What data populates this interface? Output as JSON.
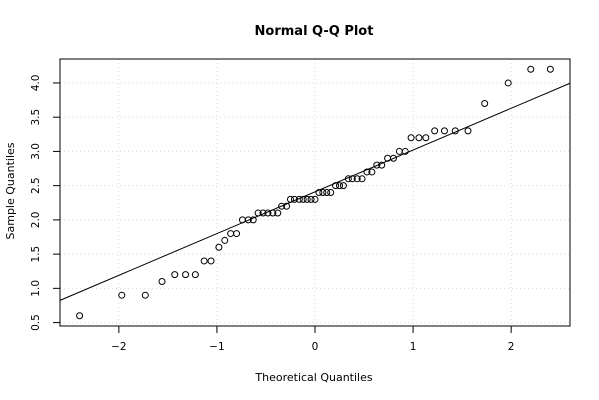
{
  "chart_data": {
    "type": "scatter",
    "title": "Normal Q-Q Plot",
    "xlabel": "Theoretical Quantiles",
    "ylabel": "Sample Quantiles",
    "xlim": [
      -2.6,
      2.6
    ],
    "ylim": [
      0.45,
      4.35
    ],
    "x_ticks": [
      -2,
      -1,
      0,
      1,
      2
    ],
    "x_tick_labels": [
      "−2",
      "−1",
      "0",
      "1",
      "2"
    ],
    "y_ticks": [
      0.5,
      1.0,
      1.5,
      2.0,
      2.5,
      3.0,
      3.5,
      4.0
    ],
    "y_tick_labels": [
      "0.5",
      "1.0",
      "1.5",
      "2.0",
      "2.5",
      "3.0",
      "3.5",
      "4.0"
    ],
    "grid": "dotted",
    "points": [
      {
        "x": -2.4,
        "y": 0.6
      },
      {
        "x": -1.97,
        "y": 0.9
      },
      {
        "x": -1.73,
        "y": 0.9
      },
      {
        "x": -1.56,
        "y": 1.1
      },
      {
        "x": -1.43,
        "y": 1.2
      },
      {
        "x": -1.32,
        "y": 1.2
      },
      {
        "x": -1.22,
        "y": 1.2
      },
      {
        "x": -1.13,
        "y": 1.4
      },
      {
        "x": -1.06,
        "y": 1.4
      },
      {
        "x": -0.98,
        "y": 1.6
      },
      {
        "x": -0.92,
        "y": 1.7
      },
      {
        "x": -0.86,
        "y": 1.8
      },
      {
        "x": -0.8,
        "y": 1.8
      },
      {
        "x": -0.74,
        "y": 2.0
      },
      {
        "x": -0.68,
        "y": 2.0
      },
      {
        "x": -0.63,
        "y": 2.0
      },
      {
        "x": -0.58,
        "y": 2.1
      },
      {
        "x": -0.53,
        "y": 2.1
      },
      {
        "x": -0.48,
        "y": 2.1
      },
      {
        "x": -0.43,
        "y": 2.1
      },
      {
        "x": -0.38,
        "y": 2.1
      },
      {
        "x": -0.34,
        "y": 2.2
      },
      {
        "x": -0.29,
        "y": 2.2
      },
      {
        "x": -0.25,
        "y": 2.3
      },
      {
        "x": -0.21,
        "y": 2.3
      },
      {
        "x": -0.16,
        "y": 2.3
      },
      {
        "x": -0.12,
        "y": 2.3
      },
      {
        "x": -0.08,
        "y": 2.3
      },
      {
        "x": -0.04,
        "y": 2.3
      },
      {
        "x": 0.0,
        "y": 2.3
      },
      {
        "x": 0.04,
        "y": 2.4
      },
      {
        "x": 0.08,
        "y": 2.4
      },
      {
        "x": 0.12,
        "y": 2.4
      },
      {
        "x": 0.16,
        "y": 2.4
      },
      {
        "x": 0.21,
        "y": 2.5
      },
      {
        "x": 0.25,
        "y": 2.5
      },
      {
        "x": 0.29,
        "y": 2.5
      },
      {
        "x": 0.34,
        "y": 2.6
      },
      {
        "x": 0.38,
        "y": 2.6
      },
      {
        "x": 0.43,
        "y": 2.6
      },
      {
        "x": 0.48,
        "y": 2.6
      },
      {
        "x": 0.53,
        "y": 2.7
      },
      {
        "x": 0.58,
        "y": 2.7
      },
      {
        "x": 0.63,
        "y": 2.8
      },
      {
        "x": 0.68,
        "y": 2.8
      },
      {
        "x": 0.74,
        "y": 2.9
      },
      {
        "x": 0.8,
        "y": 2.9
      },
      {
        "x": 0.86,
        "y": 3.0
      },
      {
        "x": 0.92,
        "y": 3.0
      },
      {
        "x": 0.98,
        "y": 3.2
      },
      {
        "x": 1.06,
        "y": 3.2
      },
      {
        "x": 1.13,
        "y": 3.2
      },
      {
        "x": 1.22,
        "y": 3.3
      },
      {
        "x": 1.32,
        "y": 3.3
      },
      {
        "x": 1.43,
        "y": 3.3
      },
      {
        "x": 1.56,
        "y": 3.3
      },
      {
        "x": 1.73,
        "y": 3.7
      },
      {
        "x": 1.97,
        "y": 4.0
      },
      {
        "x": 2.2,
        "y": 4.2
      },
      {
        "x": 2.4,
        "y": 4.2
      }
    ],
    "reference_line": {
      "intercept": 2.41,
      "slope": 0.61
    }
  }
}
